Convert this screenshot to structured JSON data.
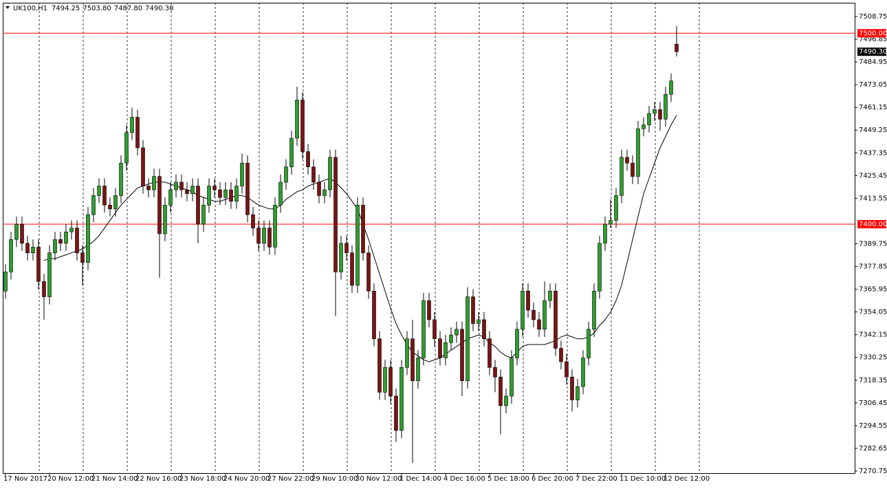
{
  "chart_data": {
    "type": "candlestick",
    "symbol": "UK100,H1",
    "info": [
      "7494.25",
      "7503.80",
      "7487.80",
      "7490.30"
    ],
    "open": [
      7365,
      7375,
      7392,
      7400,
      7390,
      7385,
      7388,
      7370,
      7362,
      7385,
      7392,
      7390,
      7396,
      7398,
      7385,
      7380,
      7405,
      7415,
      7420,
      7410,
      7408,
      7415,
      7432,
      7448,
      7456,
      7440,
      7420,
      7418,
      7425,
      7395,
      7410,
      7418,
      7422,
      7418,
      7416,
      7420,
      7400,
      7410,
      7420,
      7418,
      7414,
      7418,
      7412,
      7420,
      7432,
      7405,
      7398,
      7390,
      7398,
      7388,
      7410,
      7422,
      7430,
      7445,
      7465,
      7438,
      7430,
      7422,
      7415,
      7418,
      7435,
      7375,
      7390,
      7385,
      7368,
      7410,
      7385,
      7365,
      7340,
      7312,
      7325,
      7310,
      7292,
      7325,
      7340,
      7318,
      7330,
      7360,
      7350,
      7340,
      7330,
      7338,
      7342,
      7345,
      7318,
      7362,
      7348,
      7350,
      7340,
      7325,
      7320,
      7305,
      7310,
      7330,
      7345,
      7365,
      7355,
      7350,
      7345,
      7360,
      7365,
      7335,
      7328,
      7320,
      7308,
      7315,
      7330,
      7345,
      7365,
      7390,
      7400,
      7402,
      7415,
      7435,
      7432,
      7425,
      7450,
      7452,
      7458,
      7460,
      7455,
      7468,
      7494.25
    ],
    "high": [
      7379,
      7396,
      7404,
      7404,
      7394,
      7392,
      7392,
      7374,
      7389,
      7396,
      7396,
      7400,
      7402,
      7402,
      7389,
      7409,
      7419,
      7424,
      7424,
      7414,
      7419,
      7436,
      7452,
      7461,
      7460,
      7444,
      7424,
      7429,
      7429,
      7414,
      7422,
      7426,
      7426,
      7422,
      7424,
      7424,
      7414,
      7424,
      7424,
      7422,
      7422,
      7422,
      7424,
      7437,
      7436,
      7409,
      7402,
      7402,
      7402,
      7414,
      7426,
      7434,
      7449,
      7472,
      7469,
      7442,
      7434,
      7426,
      7422,
      7439,
      7439,
      7394,
      7394,
      7389,
      7414,
      7414,
      7389,
      7369,
      7344,
      7329,
      7329,
      7314,
      7329,
      7344,
      7350,
      7334,
      7364,
      7364,
      7354,
      7344,
      7342,
      7346,
      7349,
      7349,
      7367,
      7366,
      7354,
      7354,
      7344,
      7329,
      7324,
      7314,
      7334,
      7349,
      7369,
      7369,
      7359,
      7354,
      7370,
      7369,
      7369,
      7339,
      7332,
      7324,
      7319,
      7334,
      7349,
      7369,
      7394,
      7404,
      7413,
      7419,
      7439,
      7439,
      7436,
      7454,
      7456,
      7462,
      7464,
      7464,
      7472,
      7479,
      7503.8
    ],
    "low": [
      7361,
      7371,
      7388,
      7386,
      7381,
      7381,
      7366,
      7350,
      7358,
      7381,
      7386,
      7386,
      7392,
      7381,
      7368,
      7376,
      7401,
      7411,
      7406,
      7404,
      7404,
      7411,
      7428,
      7444,
      7436,
      7416,
      7414,
      7414,
      7372,
      7391,
      7406,
      7414,
      7414,
      7412,
      7412,
      7390,
      7396,
      7406,
      7414,
      7410,
      7410,
      7408,
      7408,
      7416,
      7401,
      7394,
      7386,
      7386,
      7384,
      7384,
      7406,
      7418,
      7426,
      7441,
      7434,
      7426,
      7418,
      7411,
      7411,
      7414,
      7352,
      7371,
      7381,
      7364,
      7364,
      7381,
      7361,
      7336,
      7308,
      7308,
      7306,
      7286,
      7288,
      7321,
      7275,
      7314,
      7326,
      7346,
      7336,
      7326,
      7326,
      7334,
      7338,
      7310,
      7314,
      7344,
      7344,
      7336,
      7321,
      7312,
      7290,
      7301,
      7306,
      7326,
      7341,
      7351,
      7346,
      7341,
      7341,
      7356,
      7331,
      7324,
      7316,
      7302,
      7304,
      7311,
      7326,
      7341,
      7361,
      7386,
      7398,
      7398,
      7411,
      7428,
      7421,
      7421,
      7446,
      7448,
      7454,
      7449,
      7451,
      7464,
      7487.8
    ],
    "close": [
      7375,
      7392,
      7400,
      7390,
      7385,
      7388,
      7370,
      7362,
      7385,
      7392,
      7390,
      7396,
      7398,
      7385,
      7380,
      7405,
      7415,
      7420,
      7410,
      7408,
      7415,
      7432,
      7448,
      7456,
      7440,
      7420,
      7418,
      7425,
      7395,
      7410,
      7418,
      7422,
      7418,
      7416,
      7420,
      7400,
      7410,
      7420,
      7418,
      7414,
      7418,
      7412,
      7420,
      7432,
      7405,
      7398,
      7390,
      7398,
      7388,
      7410,
      7422,
      7430,
      7445,
      7465,
      7438,
      7430,
      7422,
      7415,
      7418,
      7435,
      7375,
      7390,
      7385,
      7368,
      7410,
      7385,
      7365,
      7340,
      7312,
      7325,
      7310,
      7292,
      7325,
      7340,
      7318,
      7330,
      7360,
      7350,
      7340,
      7330,
      7338,
      7342,
      7345,
      7318,
      7362,
      7348,
      7350,
      7340,
      7325,
      7320,
      7305,
      7310,
      7330,
      7345,
      7365,
      7355,
      7350,
      7345,
      7360,
      7365,
      7335,
      7328,
      7320,
      7308,
      7315,
      7330,
      7345,
      7365,
      7390,
      7400,
      7402,
      7415,
      7435,
      7432,
      7425,
      7450,
      7452,
      7458,
      7460,
      7455,
      7468,
      7475,
      7490.3
    ],
    "ma": {
      "color": "#000000",
      "values": [
        null,
        null,
        null,
        null,
        null,
        null,
        null,
        7381,
        7382,
        7382,
        7383,
        7384,
        7385,
        7386,
        7387,
        7389,
        7391,
        7394,
        7398,
        7402,
        7406,
        7410,
        7413,
        7416,
        7419,
        7420,
        7421,
        7422,
        7422,
        7422,
        7421,
        7420,
        7419,
        7418,
        7417,
        7415,
        7414,
        7413,
        7412,
        7412,
        7413,
        7414,
        7415,
        7415,
        7414,
        7412,
        7410,
        7409,
        7408,
        7408,
        7410,
        7413,
        7415,
        7417,
        7418,
        7420,
        7421,
        7422,
        7423,
        7424,
        7422,
        7419,
        7416,
        7412,
        7408,
        7400,
        7392,
        7383,
        7374,
        7365,
        7356,
        7348,
        7342,
        7337,
        7333,
        7331,
        7329,
        7328,
        7329,
        7330,
        7332,
        7334,
        7336,
        7338,
        7340,
        7341,
        7342,
        7341,
        7338,
        7336,
        7333,
        7331,
        7330,
        7333,
        7336,
        7337,
        7337,
        7337,
        7337,
        7338,
        7339,
        7341,
        7342,
        7341,
        7340,
        7340,
        7341,
        7343,
        7347,
        7350,
        7354,
        7360,
        7368,
        7380,
        7392,
        7404,
        7416,
        7424,
        7432,
        7440,
        7446,
        7452,
        7457
      ]
    },
    "up_color": "#2f9e2f",
    "down_color": "#7a1414",
    "ylim": [
      7269.67,
      7515.95
    ],
    "yticks": [
      7508.75,
      7496.85,
      7484.95,
      7473.05,
      7461.15,
      7449.25,
      7437.35,
      7425.45,
      7413.55,
      7389.75,
      7377.85,
      7365.95,
      7354.05,
      7342.15,
      7330.25,
      7318.35,
      7306.45,
      7294.55,
      7282.65,
      7270.75
    ],
    "xticks": [
      {
        "value": 0,
        "label": "17 Nov 2017"
      },
      {
        "value": 8,
        "label": "20 Nov 12:00"
      },
      {
        "value": 16,
        "label": "21 Nov 14:00"
      },
      {
        "value": 24,
        "label": "22 Nov 16:00"
      },
      {
        "value": 32,
        "label": "23 Nov 18:00"
      },
      {
        "value": 40,
        "label": "24 Nov 20:00"
      },
      {
        "value": 48,
        "label": "27 Nov 22:00"
      },
      {
        "value": 56,
        "label": "29 Nov 10:00"
      },
      {
        "value": 64,
        "label": "30 Nov 12:00"
      },
      {
        "value": 72,
        "label": "1 Dec 14:00"
      },
      {
        "value": 80,
        "label": "4 Dec 16:00"
      },
      {
        "value": 88,
        "label": "5 Dec 18:00"
      },
      {
        "value": 96,
        "label": "6 Dec 20:00"
      },
      {
        "value": 104,
        "label": "7 Dec 22:00"
      },
      {
        "value": 112,
        "label": "11 Dec 10:00"
      },
      {
        "value": 120,
        "label": "12 Dec 12:00"
      }
    ],
    "grid": true,
    "hlines": [
      {
        "value": 7500,
        "label": "7500.00",
        "color": "#ff0000"
      },
      {
        "value": 7400,
        "label": "7400.00",
        "color": "#ff0000"
      }
    ],
    "last_price": {
      "value": 7490.3,
      "label": "7490.30"
    }
  }
}
